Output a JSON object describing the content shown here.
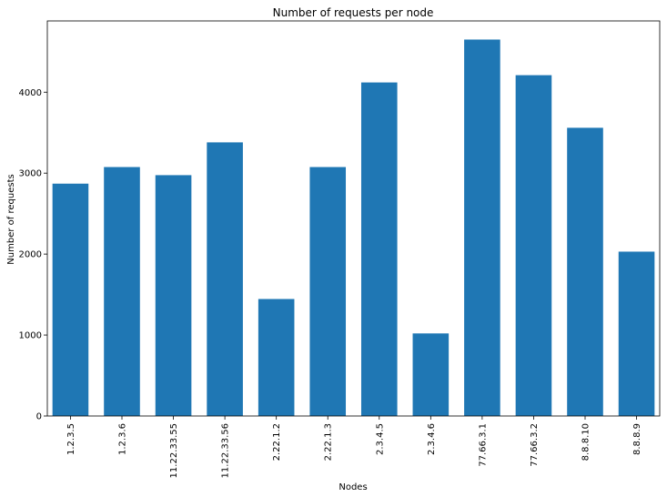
{
  "chart_data": {
    "type": "bar",
    "title": "Number of requests per node",
    "xlabel": "Nodes",
    "ylabel": "Number of requests",
    "categories": [
      "1.2.3.5",
      "1.2.3.6",
      "11.22.33.55",
      "11.22.33.56",
      "2.22.1.2",
      "2.22.1.3",
      "2.3.4.5",
      "2.3.4.6",
      "77.66.3.1",
      "77.66.3.2",
      "8.8.8.10",
      "8.8.8.9"
    ],
    "values": [
      2870,
      3075,
      2975,
      3380,
      1445,
      3075,
      4120,
      1020,
      4650,
      4210,
      3560,
      2030
    ],
    "ylim": [
      0,
      4880
    ],
    "yticks": [
      0,
      1000,
      2000,
      3000,
      4000
    ],
    "bar_color": "#1f77b4",
    "grid": false,
    "legend": "none"
  }
}
